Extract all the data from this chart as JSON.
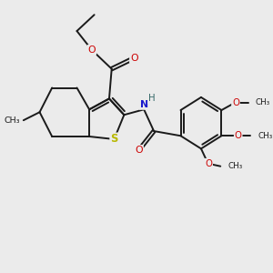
{
  "bg_color": "#ebebeb",
  "bond_color": "#1a1a1a",
  "S_color": "#b8b800",
  "N_color": "#1a1acc",
  "O_color": "#cc0000",
  "H_color": "#336666",
  "figsize": [
    3.0,
    3.0
  ],
  "dpi": 100,
  "xlim": [
    0,
    10
  ],
  "ylim": [
    0,
    10
  ]
}
